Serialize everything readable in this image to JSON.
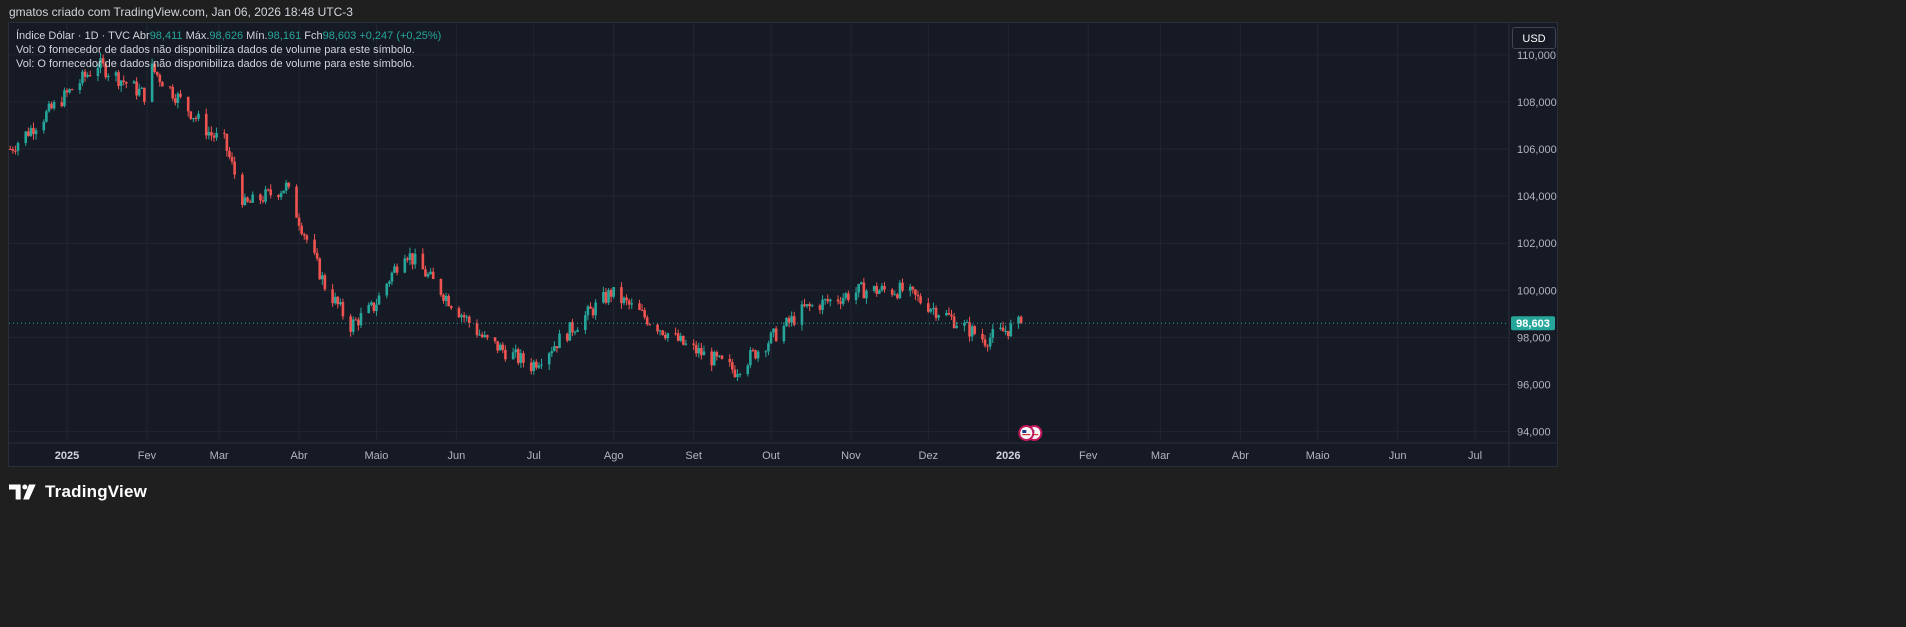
{
  "header": {
    "caption": "gmatos criado com TradingView.com, Jan 06, 2026 18:48 UTC-3"
  },
  "legend": {
    "symbol": "Índice Dólar · 1D · TVC",
    "open_label": "Abr",
    "open_value": "98,411",
    "high_label": "Máx.",
    "high_value": "98,626",
    "low_label": "Mín.",
    "low_value": "98,161",
    "close_label": "Fch",
    "close_value": "98,603",
    "change": "+0,247 (+0,25%)",
    "vol_line_1": "Vol: O fornecedor de dados não disponibiliza dados de volume para este símbolo.",
    "vol_line_2": "Vol: O fornecedor de dados não disponibiliza dados de volume para este símbolo."
  },
  "currency_button": "USD",
  "footer": {
    "brand": "TradingView"
  },
  "colors": {
    "up": "#26a69a",
    "down": "#ef5350",
    "background": "#161a25",
    "grid": "#222632",
    "price_line": "#26a69a",
    "price_label_bg": "#26a69a"
  },
  "chart_data": {
    "type": "candlestick",
    "title": "Índice Dólar · 1D · TVC",
    "ylim": [
      93.6,
      110.8
    ],
    "y_ticks": [
      "110,000",
      "108,000",
      "106,000",
      "104,000",
      "102,000",
      "100,000",
      "98,000",
      "96,000",
      "94,000"
    ],
    "x_ticks": [
      "2025",
      "Fev",
      "Mar",
      "Abr",
      "Maio",
      "Jun",
      "Jul",
      "Ago",
      "Set",
      "Out",
      "Nov",
      "Dez",
      "2026",
      "Fev",
      "Mar",
      "Abr",
      "Maio",
      "Jun",
      "Jul"
    ],
    "x_tick_dates": [
      "2025-01-01",
      "2025-02-01",
      "2025-03-01",
      "2025-04-01",
      "2025-05-01",
      "2025-06-01",
      "2025-07-01",
      "2025-08-01",
      "2025-09-01",
      "2025-10-01",
      "2025-11-01",
      "2025-12-01",
      "2026-01-01",
      "2026-02-01",
      "2026-03-01",
      "2026-04-01",
      "2026-05-01",
      "2026-06-01",
      "2026-07-01"
    ],
    "last_price": 98.603,
    "last_price_label": "98,603",
    "trend_dates": [
      "2024-12-10",
      "2025-01-13",
      "2025-01-31",
      "2025-02-03",
      "2025-02-26",
      "2025-03-03",
      "2025-03-11",
      "2025-03-27",
      "2025-04-11",
      "2025-04-21",
      "2025-04-30",
      "2025-05-12",
      "2025-06-12",
      "2025-06-30",
      "2025-07-31",
      "2025-08-28",
      "2025-09-17",
      "2025-10-14",
      "2025-11-05",
      "2025-11-21",
      "2025-12-10",
      "2025-12-23",
      "2026-01-06"
    ],
    "trend_values": [
      106.0,
      109.6,
      108.3,
      109.4,
      106.6,
      106.3,
      103.6,
      104.4,
      100.2,
      98.5,
      99.3,
      101.7,
      97.9,
      96.8,
      99.9,
      97.7,
      96.6,
      99.2,
      100.0,
      100.0,
      98.8,
      97.9,
      98.603
    ]
  }
}
